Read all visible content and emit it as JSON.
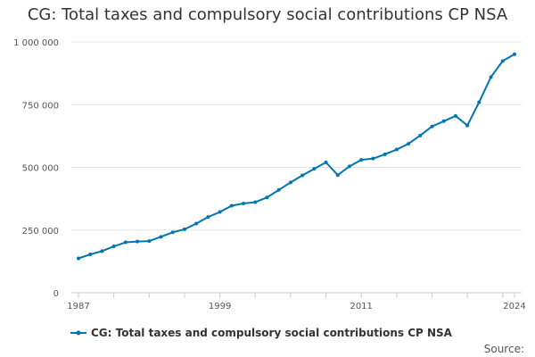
{
  "title": "CG: Total taxes and compulsory social contributions CP NSA",
  "source_label": "Source:",
  "colors": {
    "series": "#0075b0",
    "grid": "#e6e6e6",
    "axis": "#cccccc",
    "text": "#333333",
    "tick_text": "#555555"
  },
  "chart_data": {
    "type": "line",
    "title": "CG: Total taxes and compulsory social contributions CP NSA",
    "xlabel": "",
    "ylabel": "",
    "xlim": [
      1987,
      2024
    ],
    "ylim": [
      0,
      1000000
    ],
    "grid": true,
    "legend_position": "bottom-left",
    "x_tick_labels": [
      "1987",
      "1999",
      "2011",
      "2024"
    ],
    "x_tick_values": [
      1987,
      1999,
      2011,
      2024
    ],
    "y_tick_values": [
      0,
      250000,
      500000,
      750000,
      1000000
    ],
    "y_tick_labels": [
      "0",
      "250 000",
      "500 000",
      "750 000",
      "1 000 000"
    ],
    "series": [
      {
        "name": "CG: Total taxes and compulsory social contributions CP NSA",
        "x": [
          1987,
          1988,
          1989,
          1990,
          1991,
          1992,
          1993,
          1994,
          1995,
          1996,
          1997,
          1998,
          1999,
          2000,
          2001,
          2002,
          2003,
          2004,
          2005,
          2006,
          2007,
          2008,
          2009,
          2010,
          2011,
          2012,
          2013,
          2014,
          2015,
          2016,
          2017,
          2018,
          2019,
          2020,
          2021,
          2022,
          2023,
          2024
        ],
        "values": [
          137000,
          153000,
          166000,
          185000,
          201000,
          204000,
          206000,
          223000,
          241000,
          253000,
          276000,
          302000,
          322000,
          347000,
          356000,
          361000,
          380000,
          410000,
          440000,
          468000,
          494000,
          520000,
          469000,
          504000,
          530000,
          535000,
          552000,
          571000,
          594000,
          627000,
          663000,
          684000,
          705000,
          667000,
          760000,
          860000,
          924000,
          951000
        ]
      }
    ]
  }
}
